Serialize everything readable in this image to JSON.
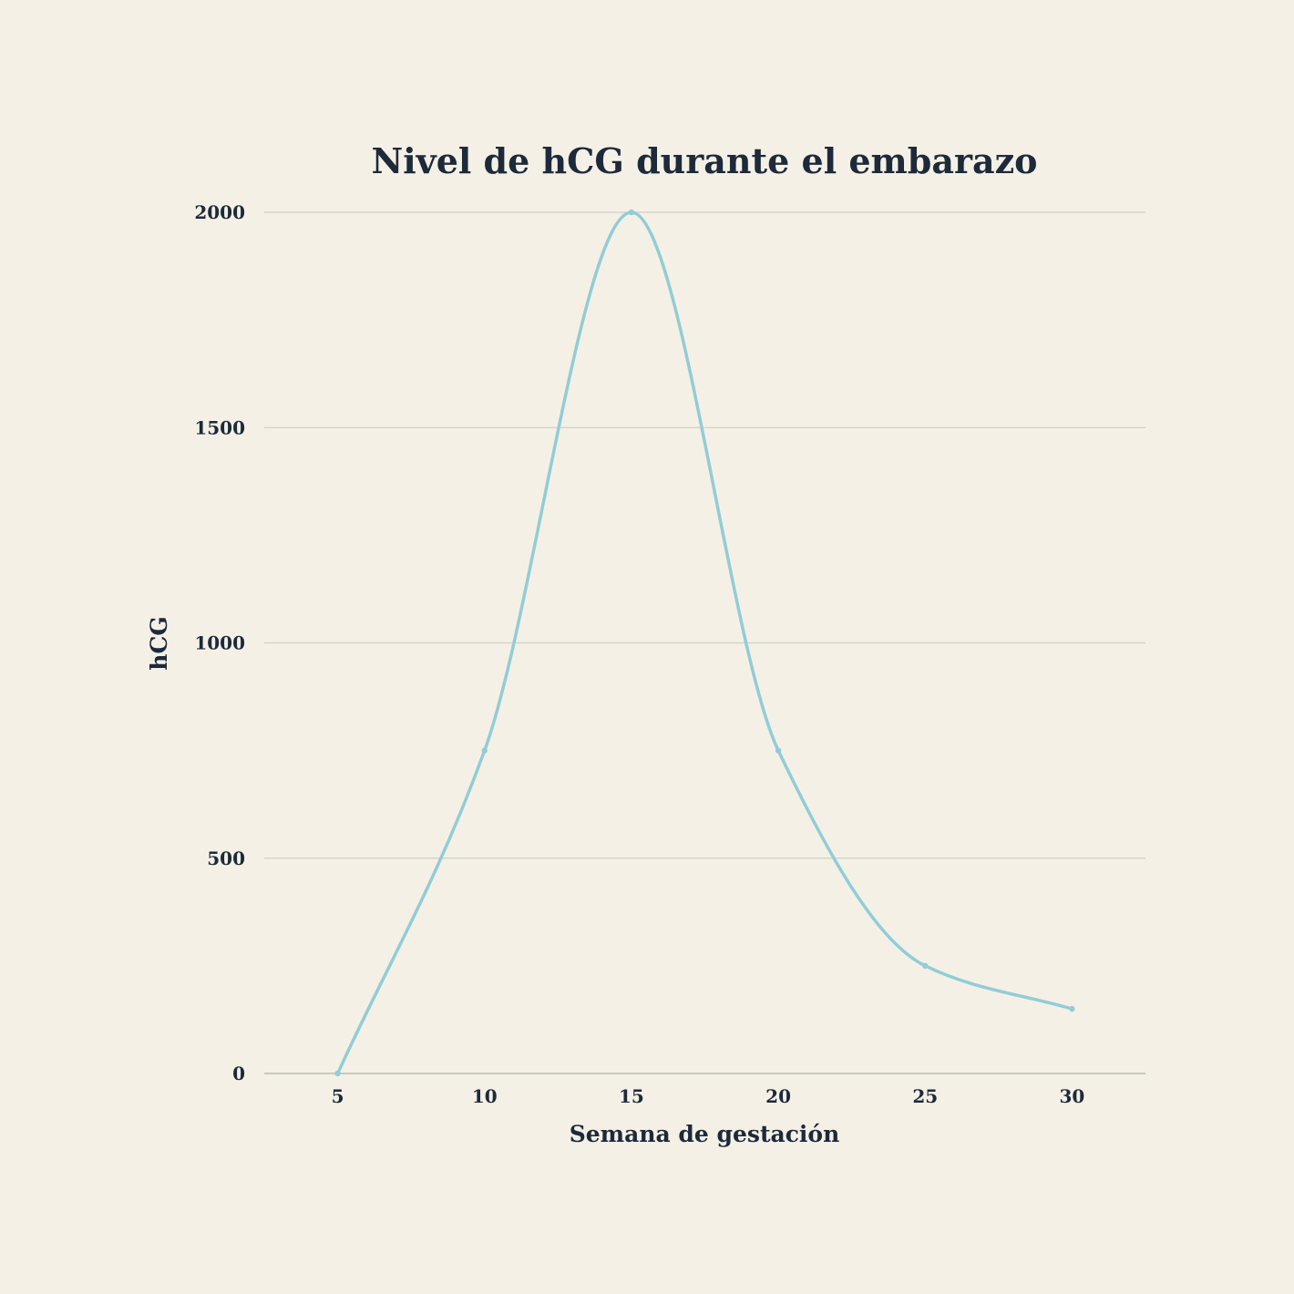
{
  "chart_data": {
    "type": "line",
    "title": "Nivel de hCG durante el embarazo",
    "xlabel": "Semana de gestación",
    "ylabel": "hCG",
    "x": [
      5,
      10,
      15,
      20,
      25,
      30
    ],
    "series": [
      {
        "name": "hCG",
        "values": [
          0,
          750,
          2000,
          750,
          250,
          150
        ],
        "color": "#92cdd6"
      }
    ],
    "xlim": [
      2.5,
      32.5
    ],
    "ylim": [
      0,
      2000
    ],
    "xticks": [
      "5",
      "10",
      "15",
      "20",
      "25",
      "30"
    ],
    "yticks": [
      "0",
      "500",
      "1000",
      "1500",
      "2000"
    ],
    "grid": true,
    "legend": "none"
  }
}
